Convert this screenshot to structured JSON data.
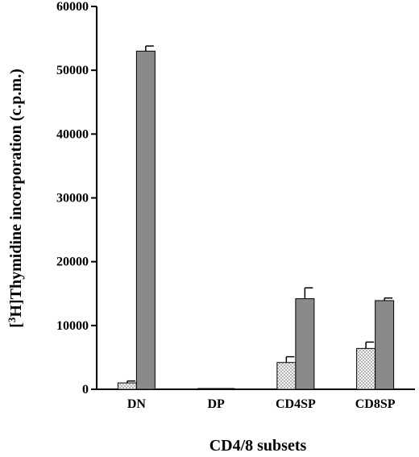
{
  "chart_data": {
    "type": "bar",
    "title": "",
    "xlabel": "CD4/8 subsets",
    "ylabel_parts": [
      "[",
      "3",
      "H]Thymidine incorporation (c.p.m.)"
    ],
    "categories": [
      "DN",
      "DP",
      "CD4SP",
      "CD8SP"
    ],
    "ylim": [
      0,
      60000
    ],
    "yticks": [
      0,
      10000,
      20000,
      30000,
      40000,
      50000,
      60000
    ],
    "series": [
      {
        "values": [
          1000,
          0,
          4200,
          6400
        ],
        "errors": [
          300,
          0,
          900,
          1000
        ],
        "fill": "dotted",
        "color": "#f2f2f2"
      },
      {
        "values": [
          53000,
          0,
          14200,
          13900
        ],
        "errors": [
          800,
          0,
          1700,
          400
        ],
        "fill": "solid",
        "color": "#8a8a8a"
      }
    ],
    "grid": false,
    "legend": "none"
  }
}
